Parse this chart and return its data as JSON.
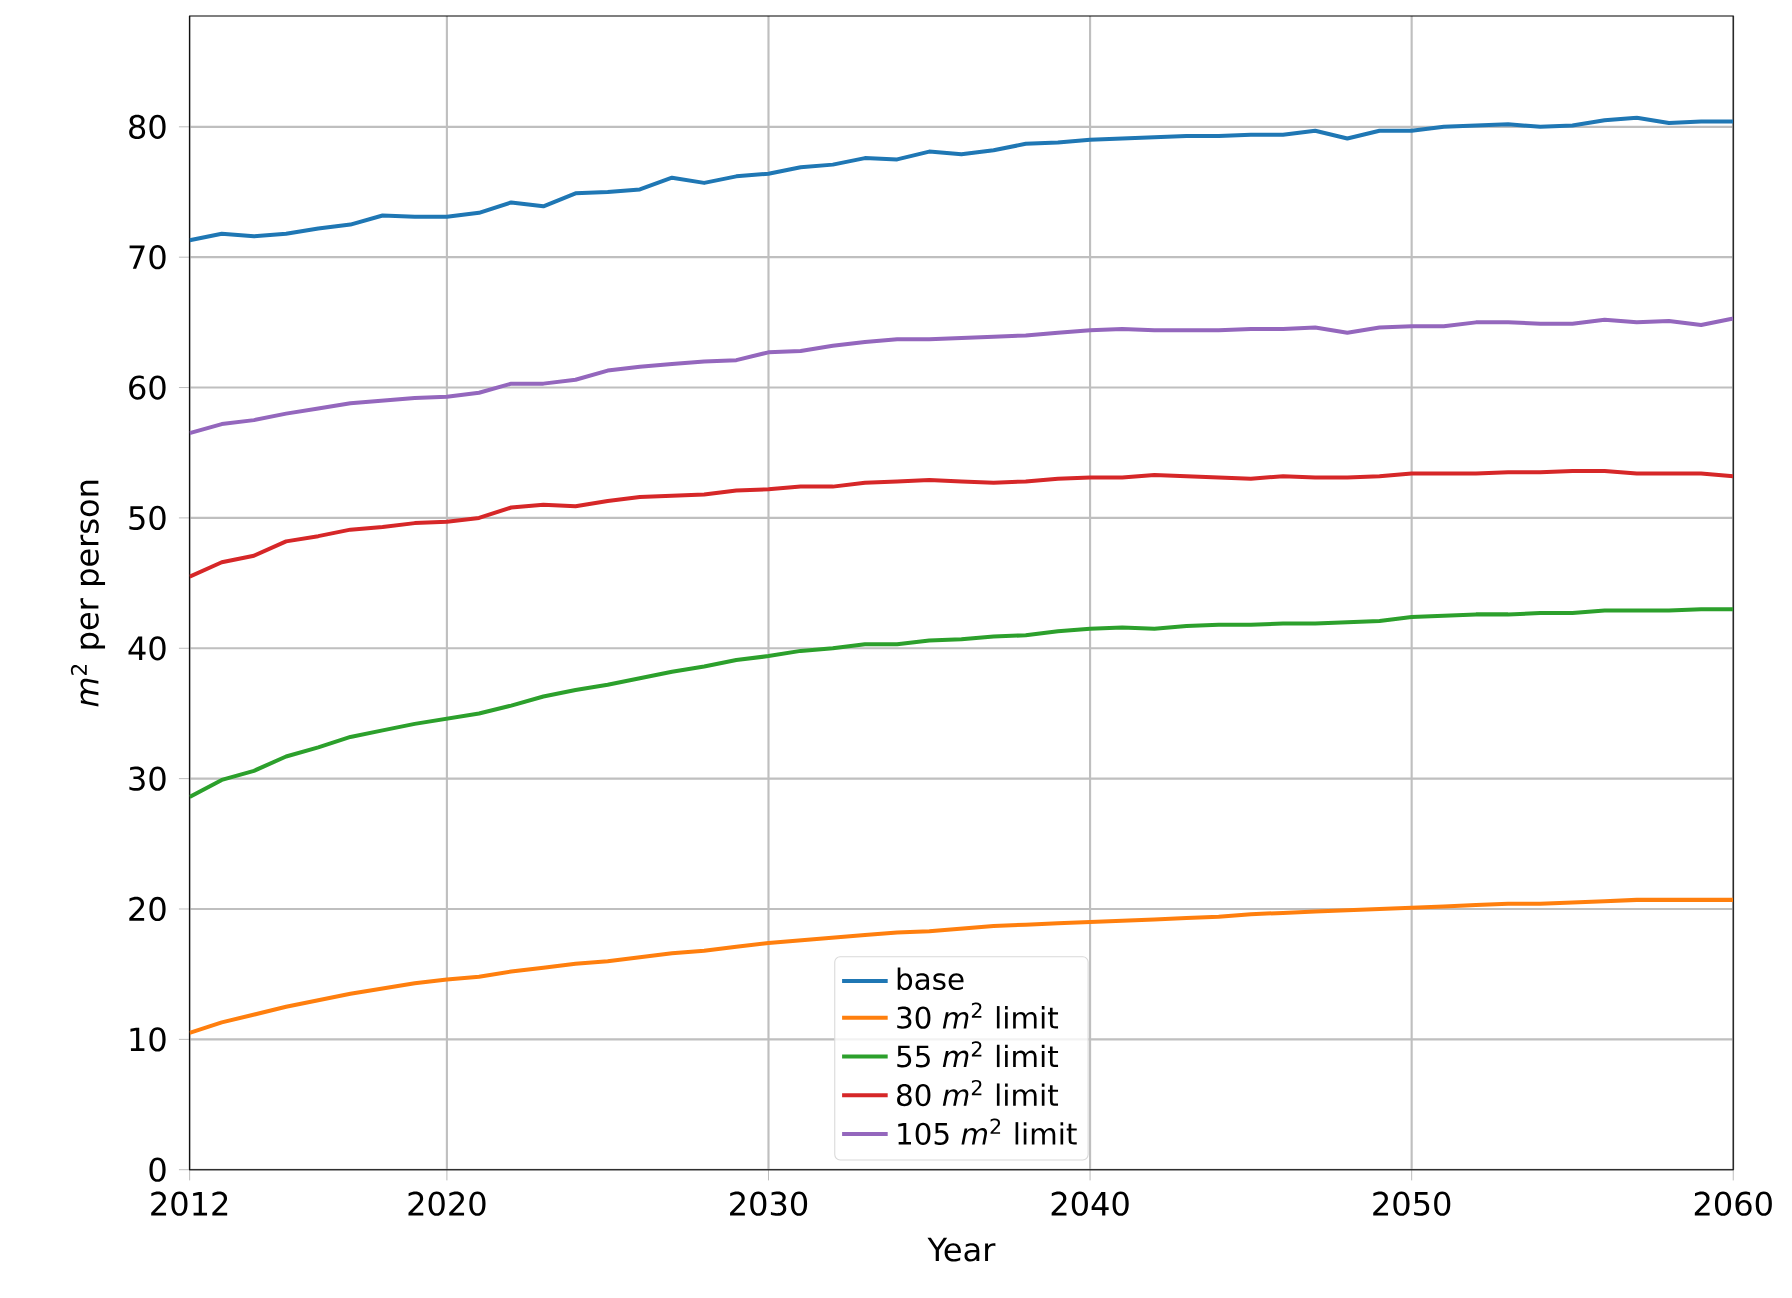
{
  "chart_data": {
    "type": "line",
    "xlabel": "Year",
    "ylabel": "*m*$^{2}$ per person",
    "x": [
      2012,
      2013,
      2014,
      2015,
      2016,
      2017,
      2018,
      2019,
      2020,
      2021,
      2022,
      2023,
      2024,
      2025,
      2026,
      2027,
      2028,
      2029,
      2030,
      2031,
      2032,
      2033,
      2034,
      2035,
      2036,
      2037,
      2038,
      2039,
      2040,
      2041,
      2042,
      2043,
      2044,
      2045,
      2046,
      2047,
      2048,
      2049,
      2050,
      2051,
      2052,
      2053,
      2054,
      2055,
      2056,
      2057,
      2058,
      2059,
      2060
    ],
    "series": [
      {
        "name": "base",
        "color": "#1f77b4",
        "values": [
          71.3,
          71.8,
          71.6,
          71.8,
          72.2,
          72.5,
          73.2,
          73.1,
          73.1,
          73.4,
          74.2,
          73.9,
          74.9,
          75.0,
          75.2,
          76.1,
          75.7,
          76.2,
          76.4,
          76.9,
          77.1,
          77.6,
          77.5,
          78.1,
          77.9,
          78.2,
          78.7,
          78.8,
          79.0,
          79.1,
          79.2,
          79.3,
          79.3,
          79.4,
          79.4,
          79.7,
          79.1,
          79.7,
          79.7,
          80.0,
          80.1,
          80.2,
          80.0,
          80.1,
          80.5,
          80.7,
          80.3,
          80.4,
          80.4
        ]
      },
      {
        "name": "30 *m*$^{2}$ limit",
        "color": "#ff7f0e",
        "values": [
          10.5,
          11.3,
          11.9,
          12.5,
          13.0,
          13.5,
          13.9,
          14.3,
          14.6,
          14.8,
          15.2,
          15.5,
          15.8,
          16.0,
          16.3,
          16.6,
          16.8,
          17.1,
          17.4,
          17.6,
          17.8,
          18.0,
          18.2,
          18.3,
          18.5,
          18.7,
          18.8,
          18.9,
          19.0,
          19.1,
          19.2,
          19.3,
          19.4,
          19.6,
          19.7,
          19.8,
          19.9,
          20.0,
          20.1,
          20.2,
          20.3,
          20.4,
          20.4,
          20.5,
          20.6,
          20.7,
          20.7,
          20.7,
          20.7
        ]
      },
      {
        "name": "55 *m*$^{2}$ limit",
        "color": "#2ca02c",
        "values": [
          28.6,
          29.9,
          30.6,
          31.7,
          32.4,
          33.2,
          33.7,
          34.2,
          34.6,
          35.0,
          35.6,
          36.3,
          36.8,
          37.2,
          37.7,
          38.2,
          38.6,
          39.1,
          39.4,
          39.8,
          40.0,
          40.3,
          40.3,
          40.6,
          40.7,
          40.9,
          41.0,
          41.3,
          41.5,
          41.6,
          41.5,
          41.7,
          41.8,
          41.8,
          41.9,
          41.9,
          42.0,
          42.1,
          42.4,
          42.5,
          42.6,
          42.6,
          42.7,
          42.7,
          42.9,
          42.9,
          42.9,
          43.0,
          43.0
        ]
      },
      {
        "name": "80 *m*$^{2}$ limit",
        "color": "#d62728",
        "values": [
          45.5,
          46.6,
          47.1,
          48.2,
          48.6,
          49.1,
          49.3,
          49.6,
          49.7,
          50.0,
          50.8,
          51.0,
          50.9,
          51.3,
          51.6,
          51.7,
          51.8,
          52.1,
          52.2,
          52.4,
          52.4,
          52.7,
          52.8,
          52.9,
          52.8,
          52.7,
          52.8,
          53.0,
          53.1,
          53.1,
          53.3,
          53.2,
          53.1,
          53.0,
          53.2,
          53.1,
          53.1,
          53.2,
          53.4,
          53.4,
          53.4,
          53.5,
          53.5,
          53.6,
          53.6,
          53.4,
          53.4,
          53.4,
          53.2
        ]
      },
      {
        "name": "105 *m*$^{2}$ limit",
        "color": "#9467bd",
        "values": [
          56.5,
          57.2,
          57.5,
          58.0,
          58.4,
          58.8,
          59.0,
          59.2,
          59.3,
          59.6,
          60.3,
          60.3,
          60.6,
          61.3,
          61.6,
          61.8,
          62.0,
          62.1,
          62.7,
          62.8,
          63.2,
          63.5,
          63.7,
          63.7,
          63.8,
          63.9,
          64.0,
          64.2,
          64.4,
          64.5,
          64.4,
          64.4,
          64.4,
          64.5,
          64.5,
          64.6,
          64.2,
          64.6,
          64.7,
          64.7,
          65.0,
          65.0,
          64.9,
          64.9,
          65.2,
          65.0,
          65.1,
          64.8,
          65.3
        ]
      }
    ],
    "xlim": [
      2012,
      2060
    ],
    "ylim": [
      0,
      88.5
    ],
    "xticks": [
      2012,
      2020,
      2030,
      2040,
      2050,
      2060
    ],
    "yticks": [
      0,
      10,
      20,
      30,
      40,
      50,
      60,
      70,
      80
    ],
    "grid": true,
    "legend": "bottom"
  }
}
